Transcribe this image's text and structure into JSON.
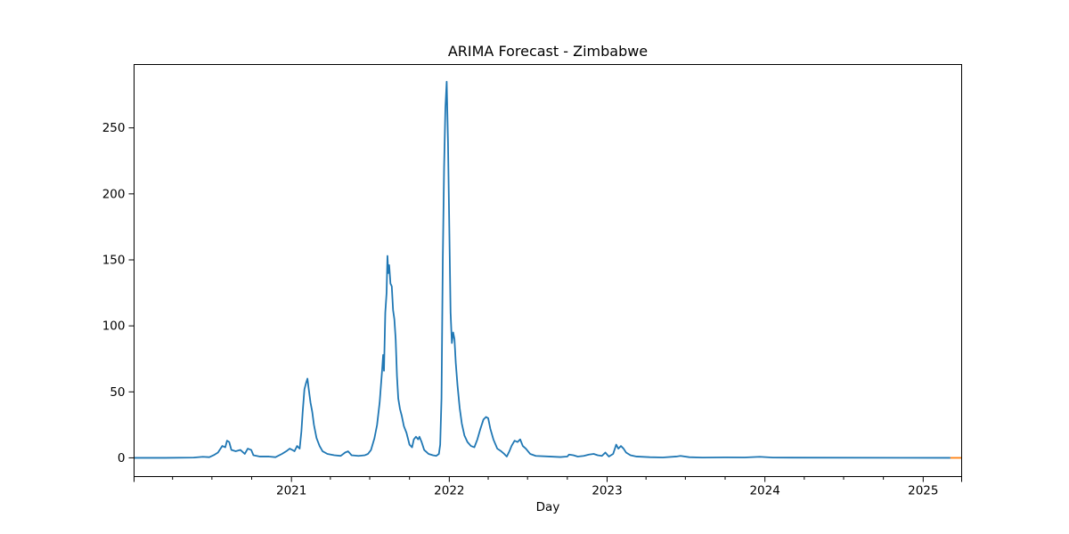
{
  "chart_data": {
    "type": "line",
    "title": "ARIMA Forecast - Zimbabwe",
    "xlabel": "Day",
    "ylabel": "",
    "x_tick_labels": [
      "2021",
      "2022",
      "2023",
      "2024",
      "2025"
    ],
    "y_tick_labels": [
      "0",
      "50",
      "100",
      "150",
      "200",
      "250"
    ],
    "xlim": [
      "2020-01-03",
      "2025-03-31"
    ],
    "ylim": [
      -14.2,
      298
    ],
    "grid": false,
    "legend": "none",
    "colors": {
      "history": "#1f77b4",
      "forecast": "#ff7f0e"
    },
    "series": [
      {
        "values": [
          [
            "2020-01-03",
            0
          ],
          [
            "2020-03-15",
            0
          ],
          [
            "2020-05-20",
            0.2
          ],
          [
            "2020-06-10",
            0.8
          ],
          [
            "2020-06-25",
            0.5
          ],
          [
            "2020-07-05",
            2
          ],
          [
            "2020-07-15",
            4
          ],
          [
            "2020-07-25",
            9
          ],
          [
            "2020-08-01",
            8
          ],
          [
            "2020-08-05",
            13
          ],
          [
            "2020-08-10",
            12
          ],
          [
            "2020-08-15",
            6
          ],
          [
            "2020-08-25",
            5
          ],
          [
            "2020-09-05",
            6
          ],
          [
            "2020-09-15",
            3
          ],
          [
            "2020-09-22",
            7
          ],
          [
            "2020-09-30",
            6
          ],
          [
            "2020-10-05",
            2
          ],
          [
            "2020-10-20",
            1
          ],
          [
            "2020-11-10",
            1
          ],
          [
            "2020-11-25",
            0.5
          ],
          [
            "2020-12-10",
            3
          ],
          [
            "2020-12-20",
            5
          ],
          [
            "2020-12-28",
            7
          ],
          [
            "2021-01-03",
            6
          ],
          [
            "2021-01-08",
            5
          ],
          [
            "2021-01-14",
            9
          ],
          [
            "2021-01-20",
            7
          ],
          [
            "2021-01-24",
            20
          ],
          [
            "2021-01-27",
            35
          ],
          [
            "2021-01-31",
            52
          ],
          [
            "2021-02-04",
            57
          ],
          [
            "2021-02-07",
            60
          ],
          [
            "2021-02-10",
            52
          ],
          [
            "2021-02-14",
            42
          ],
          [
            "2021-02-18",
            35
          ],
          [
            "2021-02-22",
            25
          ],
          [
            "2021-02-28",
            15
          ],
          [
            "2021-03-07",
            9
          ],
          [
            "2021-03-14",
            5
          ],
          [
            "2021-03-25",
            3
          ],
          [
            "2021-04-10",
            2
          ],
          [
            "2021-04-25",
            1.5
          ],
          [
            "2021-05-05",
            4
          ],
          [
            "2021-05-12",
            5
          ],
          [
            "2021-05-20",
            2
          ],
          [
            "2021-06-05",
            1.5
          ],
          [
            "2021-06-20",
            2
          ],
          [
            "2021-06-27",
            3
          ],
          [
            "2021-07-04",
            6
          ],
          [
            "2021-07-12",
            15
          ],
          [
            "2021-07-18",
            25
          ],
          [
            "2021-07-24",
            42
          ],
          [
            "2021-07-30",
            68
          ],
          [
            "2021-08-01",
            78
          ],
          [
            "2021-08-03",
            66
          ],
          [
            "2021-08-06",
            110
          ],
          [
            "2021-08-09",
            125
          ],
          [
            "2021-08-11",
            153
          ],
          [
            "2021-08-13",
            140
          ],
          [
            "2021-08-15",
            146
          ],
          [
            "2021-08-18",
            132
          ],
          [
            "2021-08-21",
            130
          ],
          [
            "2021-08-24",
            112
          ],
          [
            "2021-08-27",
            105
          ],
          [
            "2021-08-30",
            90
          ],
          [
            "2021-09-02",
            62
          ],
          [
            "2021-09-05",
            45
          ],
          [
            "2021-09-09",
            37
          ],
          [
            "2021-09-13",
            32
          ],
          [
            "2021-09-18",
            24
          ],
          [
            "2021-09-24",
            19
          ],
          [
            "2021-10-01",
            10
          ],
          [
            "2021-10-07",
            8
          ],
          [
            "2021-10-11",
            14
          ],
          [
            "2021-10-16",
            16
          ],
          [
            "2021-10-21",
            14
          ],
          [
            "2021-10-24",
            16
          ],
          [
            "2021-10-29",
            12
          ],
          [
            "2021-11-04",
            6
          ],
          [
            "2021-11-14",
            3
          ],
          [
            "2021-11-24",
            2
          ],
          [
            "2021-12-02",
            1.5
          ],
          [
            "2021-12-08",
            3
          ],
          [
            "2021-12-11",
            10
          ],
          [
            "2021-12-14",
            45
          ],
          [
            "2021-12-17",
            150
          ],
          [
            "2021-12-20",
            220
          ],
          [
            "2021-12-23",
            265
          ],
          [
            "2021-12-26",
            285
          ],
          [
            "2021-12-29",
            240
          ],
          [
            "2022-01-01",
            175
          ],
          [
            "2022-01-04",
            110
          ],
          [
            "2022-01-07",
            87
          ],
          [
            "2022-01-10",
            95
          ],
          [
            "2022-01-13",
            90
          ],
          [
            "2022-01-16",
            72
          ],
          [
            "2022-01-20",
            55
          ],
          [
            "2022-01-25",
            38
          ],
          [
            "2022-01-30",
            26
          ],
          [
            "2022-02-05",
            17
          ],
          [
            "2022-02-12",
            12
          ],
          [
            "2022-02-20",
            9
          ],
          [
            "2022-02-28",
            8
          ],
          [
            "2022-03-07",
            14
          ],
          [
            "2022-03-14",
            22
          ],
          [
            "2022-03-21",
            29
          ],
          [
            "2022-03-27",
            31
          ],
          [
            "2022-04-01",
            30
          ],
          [
            "2022-04-06",
            22
          ],
          [
            "2022-04-13",
            14
          ],
          [
            "2022-04-22",
            7
          ],
          [
            "2022-05-01",
            5
          ],
          [
            "2022-05-08",
            3
          ],
          [
            "2022-05-14",
            1
          ],
          [
            "2022-05-20",
            5
          ],
          [
            "2022-05-25",
            9
          ],
          [
            "2022-06-01",
            13
          ],
          [
            "2022-06-08",
            12
          ],
          [
            "2022-06-14",
            14
          ],
          [
            "2022-06-20",
            9
          ],
          [
            "2022-06-27",
            7
          ],
          [
            "2022-07-07",
            3
          ],
          [
            "2022-07-20",
            1.5
          ],
          [
            "2022-08-20",
            1
          ],
          [
            "2022-09-15",
            0.6
          ],
          [
            "2022-10-01",
            1
          ],
          [
            "2022-10-05",
            2.5
          ],
          [
            "2022-10-15",
            2
          ],
          [
            "2022-10-25",
            1
          ],
          [
            "2022-11-08",
            1.5
          ],
          [
            "2022-11-20",
            2.5
          ],
          [
            "2022-12-01",
            3
          ],
          [
            "2022-12-10",
            2
          ],
          [
            "2022-12-20",
            1.5
          ],
          [
            "2022-12-28",
            4
          ],
          [
            "2023-01-05",
            1
          ],
          [
            "2023-01-15",
            3
          ],
          [
            "2023-01-22",
            10
          ],
          [
            "2023-01-27",
            7
          ],
          [
            "2023-02-02",
            9
          ],
          [
            "2023-02-08",
            7
          ],
          [
            "2023-02-14",
            4
          ],
          [
            "2023-02-24",
            2
          ],
          [
            "2023-03-10",
            1
          ],
          [
            "2023-04-10",
            0.5
          ],
          [
            "2023-05-10",
            0.3
          ],
          [
            "2023-06-10",
            1
          ],
          [
            "2023-06-20",
            1.5
          ],
          [
            "2023-07-10",
            0.5
          ],
          [
            "2023-08-10",
            0.2
          ],
          [
            "2023-10-01",
            0.4
          ],
          [
            "2023-11-15",
            0.3
          ],
          [
            "2023-12-20",
            0.8
          ],
          [
            "2024-01-20",
            0.2
          ],
          [
            "2025-03-05",
            0
          ]
        ]
      },
      {
        "values": [
          [
            "2025-03-05",
            0
          ],
          [
            "2025-03-31",
            0
          ]
        ]
      }
    ]
  }
}
